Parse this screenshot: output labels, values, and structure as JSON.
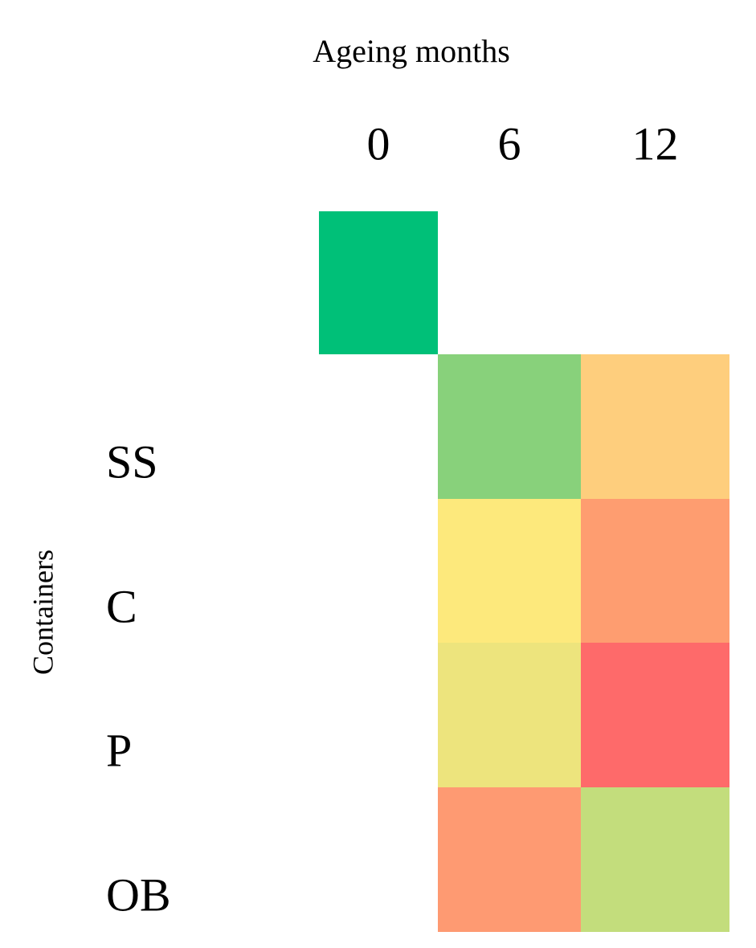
{
  "chart_data": {
    "type": "heatmap",
    "title": "Ageing months",
    "y_label": "Containers",
    "categories": [
      0,
      6,
      12
    ],
    "rows": [
      null,
      "SS",
      "C",
      "P",
      "OB"
    ],
    "cell_colors": [
      [
        "#00c078",
        null,
        null
      ],
      [
        null,
        "#88d17b",
        "#fece7d"
      ],
      [
        null,
        "#fde97c",
        "#fe9d70"
      ],
      [
        null,
        "#ede47d",
        "#fe6a6a"
      ],
      [
        null,
        "#fe9a72",
        "#c3dd7c"
      ]
    ]
  }
}
